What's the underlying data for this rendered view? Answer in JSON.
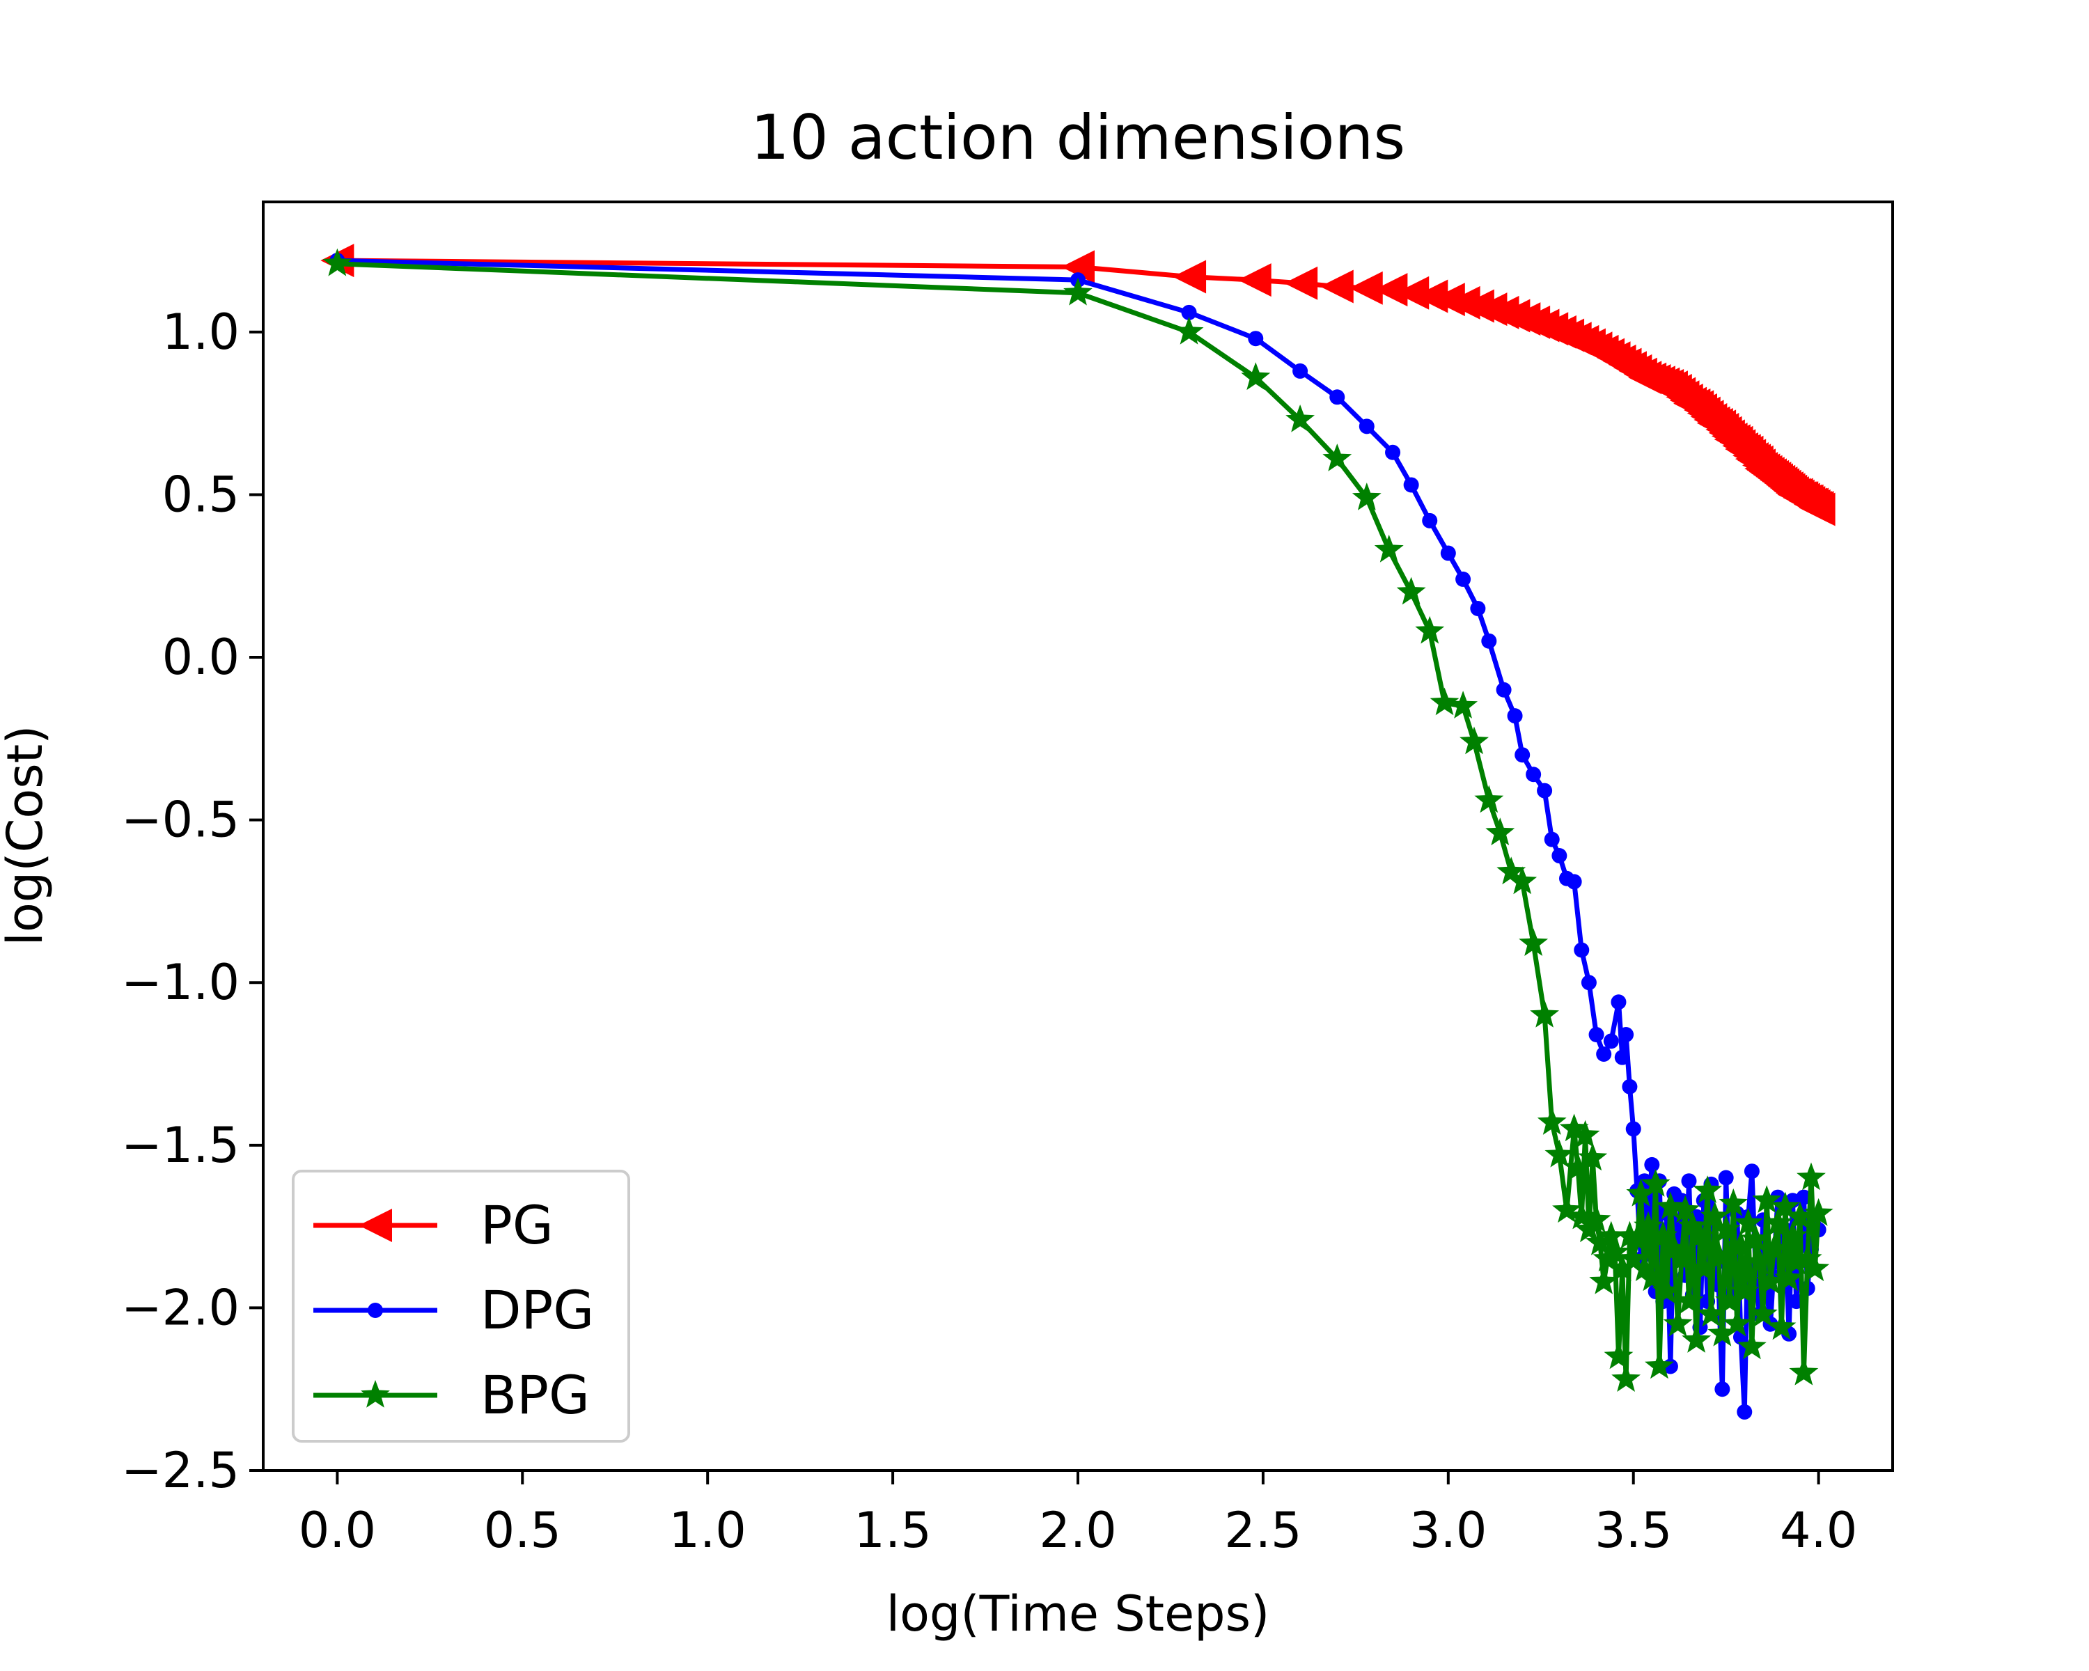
{
  "chart_data": {
    "type": "line",
    "title": "10 action dimensions",
    "xlabel": "log(Time Steps)",
    "ylabel": "log(Cost)",
    "xlim": [
      -0.2,
      4.2
    ],
    "ylim": [
      -2.5,
      1.4
    ],
    "xticks": [
      "0.0",
      "0.5",
      "1.0",
      "1.5",
      "2.0",
      "2.5",
      "3.0",
      "3.5",
      "4.0"
    ],
    "yticks": [
      "1.0",
      "0.5",
      "0.0",
      "−0.5",
      "−1.0",
      "−1.5",
      "−2.0",
      "−2.5"
    ],
    "legend_position": "lower-left",
    "grid": false,
    "series": [
      {
        "name": "PG",
        "color": "#ff0000",
        "marker": "triangle-left",
        "x": [
          0.0,
          2.0,
          2.301,
          2.477,
          2.602,
          2.699,
          2.778,
          2.845,
          2.903,
          2.954,
          3.0,
          3.041,
          3.079,
          3.114,
          3.146,
          3.176,
          3.204,
          3.23,
          3.255,
          3.279,
          3.301,
          3.322,
          3.342,
          3.362,
          3.38,
          3.398,
          3.415,
          3.431,
          3.447,
          3.462,
          3.477,
          3.491,
          3.505,
          3.519,
          3.531,
          3.544,
          3.556,
          3.568,
          3.58,
          3.591,
          3.602,
          3.613,
          3.623,
          3.633,
          3.643,
          3.653,
          3.663,
          3.672,
          3.681,
          3.69,
          3.699,
          3.708,
          3.716,
          3.724,
          3.732,
          3.74,
          3.748,
          3.756,
          3.763,
          3.771,
          3.778,
          3.785,
          3.792,
          3.799,
          3.806,
          3.813,
          3.82,
          3.826,
          3.833,
          3.839,
          3.845,
          3.851,
          3.857,
          3.863,
          3.869,
          3.875,
          3.881,
          3.886,
          3.892,
          3.898,
          3.903,
          3.908,
          3.914,
          3.919,
          3.924,
          3.929,
          3.934,
          3.94,
          3.944,
          3.949,
          3.954,
          3.959,
          3.964,
          3.968,
          3.973,
          3.978,
          3.982,
          3.987,
          3.991,
          3.996,
          4.0
        ],
        "y": [
          1.22,
          1.2,
          1.17,
          1.16,
          1.15,
          1.14,
          1.135,
          1.13,
          1.12,
          1.11,
          1.1,
          1.09,
          1.08,
          1.07,
          1.06,
          1.05,
          1.04,
          1.03,
          1.02,
          1.01,
          1.0,
          0.99,
          0.98,
          0.97,
          0.96,
          0.95,
          0.94,
          0.93,
          0.92,
          0.91,
          0.9,
          0.89,
          0.88,
          0.87,
          0.86,
          0.855,
          0.85,
          0.845,
          0.84,
          0.835,
          0.83,
          0.82,
          0.81,
          0.8,
          0.79,
          0.78,
          0.775,
          0.77,
          0.76,
          0.75,
          0.74,
          0.73,
          0.72,
          0.715,
          0.71,
          0.7,
          0.69,
          0.68,
          0.67,
          0.665,
          0.66,
          0.65,
          0.64,
          0.635,
          0.63,
          0.62,
          0.61,
          0.605,
          0.6,
          0.59,
          0.58,
          0.575,
          0.57,
          0.565,
          0.56,
          0.555,
          0.55,
          0.545,
          0.54,
          0.535,
          0.53,
          0.525,
          0.52,
          0.515,
          0.51,
          0.505,
          0.5,
          0.5,
          0.495,
          0.49,
          0.49,
          0.485,
          0.48,
          0.48,
          0.475,
          0.47,
          0.47,
          0.465,
          0.46,
          0.46,
          0.455
        ]
      },
      {
        "name": "DPG",
        "color": "#0000ff",
        "marker": "point",
        "x": [
          0.0,
          2.0,
          2.3,
          2.48,
          2.6,
          2.7,
          2.78,
          2.85,
          2.9,
          2.95,
          3.0,
          3.04,
          3.08,
          3.11,
          3.15,
          3.18,
          3.2,
          3.23,
          3.26,
          3.28,
          3.3,
          3.32,
          3.34,
          3.36,
          3.38,
          3.4,
          3.42,
          3.44,
          3.46,
          3.47,
          3.48,
          3.49,
          3.5,
          3.51,
          3.52,
          3.53,
          3.54,
          3.55,
          3.56,
          3.57,
          3.58,
          3.59,
          3.6,
          3.61,
          3.62,
          3.63,
          3.64,
          3.65,
          3.66,
          3.67,
          3.68,
          3.69,
          3.7,
          3.71,
          3.72,
          3.73,
          3.74,
          3.75,
          3.76,
          3.77,
          3.78,
          3.79,
          3.8,
          3.81,
          3.82,
          3.83,
          3.84,
          3.85,
          3.86,
          3.87,
          3.88,
          3.89,
          3.9,
          3.91,
          3.92,
          3.93,
          3.94,
          3.95,
          3.96,
          3.97,
          3.98,
          3.99,
          4.0
        ],
        "y": [
          1.22,
          1.16,
          1.06,
          0.98,
          0.88,
          0.8,
          0.71,
          0.63,
          0.53,
          0.42,
          0.32,
          0.24,
          0.15,
          0.05,
          -0.1,
          -0.18,
          -0.3,
          -0.36,
          -0.41,
          -0.56,
          -0.61,
          -0.68,
          -0.69,
          -0.9,
          -1.0,
          -1.16,
          -1.22,
          -1.18,
          -1.06,
          -1.23,
          -1.16,
          -1.32,
          -1.45,
          -1.64,
          -1.85,
          -1.61,
          -1.72,
          -1.56,
          -1.95,
          -1.61,
          -1.98,
          -1.71,
          -2.18,
          -1.65,
          -1.81,
          -1.67,
          -1.9,
          -1.61,
          -1.96,
          -1.72,
          -2.06,
          -1.67,
          -1.98,
          -1.62,
          -1.87,
          -1.93,
          -2.25,
          -1.6,
          -1.97,
          -1.95,
          -1.71,
          -2.09,
          -2.32,
          -1.72,
          -1.58,
          -1.88,
          -2.02,
          -1.73,
          -1.95,
          -2.05,
          -1.86,
          -1.66,
          -1.9,
          -1.76,
          -2.08,
          -1.67,
          -1.98,
          -1.81,
          -1.66,
          -1.94,
          -1.82,
          -1.75,
          -1.76
        ]
      },
      {
        "name": "BPG",
        "color": "#008000",
        "marker": "star",
        "x": [
          0.0,
          2.0,
          2.3,
          2.48,
          2.6,
          2.7,
          2.78,
          2.84,
          2.9,
          2.95,
          2.99,
          3.04,
          3.07,
          3.11,
          3.14,
          3.17,
          3.2,
          3.23,
          3.26,
          3.28,
          3.3,
          3.32,
          3.34,
          3.35,
          3.36,
          3.37,
          3.38,
          3.39,
          3.4,
          3.41,
          3.42,
          3.43,
          3.44,
          3.45,
          3.46,
          3.47,
          3.48,
          3.49,
          3.5,
          3.51,
          3.52,
          3.53,
          3.54,
          3.55,
          3.56,
          3.57,
          3.58,
          3.59,
          3.6,
          3.61,
          3.62,
          3.63,
          3.64,
          3.65,
          3.66,
          3.67,
          3.68,
          3.69,
          3.7,
          3.71,
          3.72,
          3.73,
          3.74,
          3.75,
          3.76,
          3.77,
          3.78,
          3.79,
          3.8,
          3.81,
          3.82,
          3.83,
          3.84,
          3.85,
          3.86,
          3.87,
          3.88,
          3.89,
          3.9,
          3.91,
          3.92,
          3.93,
          3.94,
          3.95,
          3.96,
          3.97,
          3.98,
          3.99,
          4.0
        ],
        "y": [
          1.21,
          1.12,
          1.0,
          0.86,
          0.73,
          0.61,
          0.49,
          0.33,
          0.2,
          0.08,
          -0.14,
          -0.15,
          -0.26,
          -0.44,
          -0.54,
          -0.66,
          -0.69,
          -0.88,
          -1.1,
          -1.43,
          -1.53,
          -1.7,
          -1.45,
          -1.57,
          -1.72,
          -1.47,
          -1.76,
          -1.54,
          -1.73,
          -1.8,
          -1.92,
          -1.85,
          -1.78,
          -1.83,
          -2.15,
          -1.88,
          -2.22,
          -1.78,
          -1.85,
          -1.79,
          -1.65,
          -1.88,
          -1.75,
          -1.91,
          -1.62,
          -2.18,
          -1.78,
          -1.95,
          -1.69,
          -1.82,
          -2.05,
          -1.85,
          -1.7,
          -1.98,
          -1.75,
          -2.1,
          -1.78,
          -1.88,
          -1.64,
          -2.02,
          -1.72,
          -1.84,
          -2.08,
          -1.76,
          -1.98,
          -1.68,
          -2.05,
          -1.81,
          -1.95,
          -1.74,
          -2.12,
          -1.79,
          -1.86,
          -2.02,
          -1.67,
          -1.92,
          -1.82,
          -1.74,
          -2.06,
          -1.69,
          -1.91,
          -1.78,
          -1.86,
          -1.72,
          -2.2,
          -1.85,
          -1.6,
          -1.88,
          -1.71
        ]
      }
    ]
  }
}
